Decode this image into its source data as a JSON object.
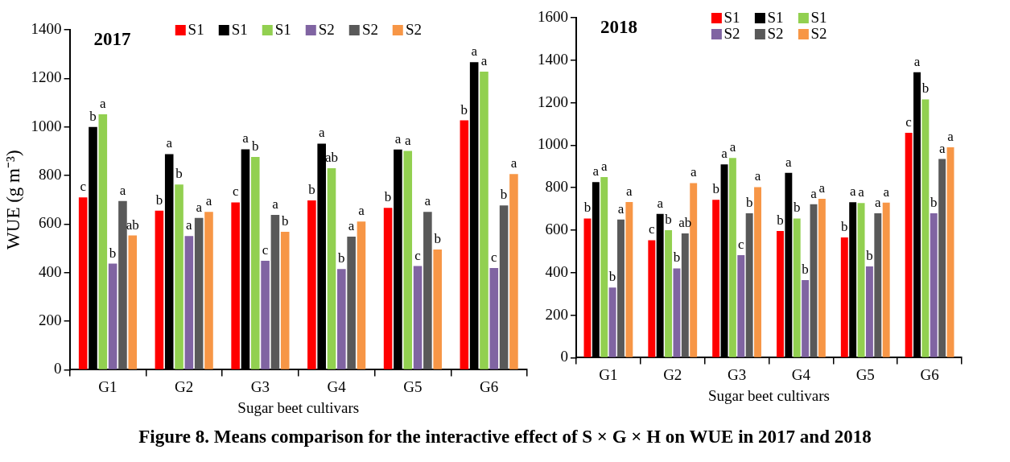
{
  "chart_data": [
    {
      "type": "bar",
      "title": "2017",
      "xlabel": "Sugar beet cultivars",
      "ylabel": "WUE (g m⁻³)",
      "categories": [
        "G1",
        "G2",
        "G3",
        "G4",
        "G5",
        "G6"
      ],
      "ylim": [
        0,
        1400
      ],
      "yticks": [
        0,
        200,
        400,
        600,
        800,
        1000,
        1200,
        1400
      ],
      "grid": false,
      "legend": "top",
      "series": [
        {
          "name": "S1",
          "color": "#ff0000",
          "values": [
            710,
            655,
            689,
            697,
            667,
            1027
          ],
          "value_labels": [
            "c",
            "b",
            "c",
            "b",
            "b",
            "b"
          ]
        },
        {
          "name": "S1",
          "color": "#000000",
          "values": [
            1000,
            888,
            908,
            931,
            907,
            1267
          ],
          "value_labels": [
            "b",
            "a",
            "a",
            "a",
            "a",
            "a"
          ]
        },
        {
          "name": "S1",
          "color": "#92d050",
          "values": [
            1052,
            763,
            876,
            830,
            901,
            1228
          ],
          "value_labels": [
            "a",
            "b",
            "b",
            "ab",
            "a",
            "a"
          ]
        },
        {
          "name": "S2",
          "color": "#8064a2",
          "values": [
            437,
            551,
            449,
            415,
            427,
            419
          ],
          "value_labels": [
            "b",
            "a",
            "c",
            "b",
            "c",
            "c"
          ]
        },
        {
          "name": "S2",
          "color": "#595959",
          "values": [
            695,
            625,
            638,
            548,
            650,
            677
          ],
          "value_labels": [
            "a",
            "a",
            "a",
            "a",
            "a",
            "b"
          ]
        },
        {
          "name": "S2",
          "color": "#f79646",
          "values": [
            553,
            650,
            568,
            610,
            495,
            806
          ],
          "value_labels": [
            "ab",
            "a",
            "b",
            "a",
            "b",
            "a"
          ]
        }
      ],
      "annotations": [
        "Figure 8. Means comparison for the interactive effect of S × G × H on WUE  in 2017 and 2018"
      ]
    },
    {
      "type": "bar",
      "title": "2018",
      "xlabel": "Sugar beet cultivars",
      "categories": [
        "G1",
        "G2",
        "G3",
        "G4",
        "G5",
        "G6"
      ],
      "ylim": [
        0,
        1600
      ],
      "yticks": [
        0,
        200,
        400,
        600,
        800,
        1000,
        1200,
        1400,
        1600
      ],
      "grid": false,
      "legend": "top",
      "series": [
        {
          "name": "S1",
          "color": "#ff0000",
          "values": [
            655,
            553,
            743,
            596,
            566,
            1058
          ],
          "value_labels": [
            "b",
            "c",
            "b",
            "b",
            "b",
            "c"
          ]
        },
        {
          "name": "S1",
          "color": "#000000",
          "values": [
            826,
            677,
            910,
            870,
            732,
            1343
          ],
          "value_labels": [
            "a",
            "a",
            "a",
            "a",
            "a",
            "a"
          ]
        },
        {
          "name": "S1",
          "color": "#92d050",
          "values": [
            850,
            600,
            940,
            655,
            728,
            1216
          ],
          "value_labels": [
            "a",
            "b",
            "a",
            "b",
            "a",
            "b"
          ]
        },
        {
          "name": "S2",
          "color": "#8064a2",
          "values": [
            330,
            420,
            483,
            365,
            430,
            680
          ],
          "value_labels": [
            "b",
            "b",
            "c",
            "b",
            "b",
            "b"
          ]
        },
        {
          "name": "S2",
          "color": "#595959",
          "values": [
            650,
            585,
            680,
            722,
            680,
            935
          ],
          "value_labels": [
            "a",
            "ab",
            "b",
            "a",
            "a",
            "a"
          ]
        },
        {
          "name": "S2",
          "color": "#f79646",
          "values": [
            733,
            822,
            803,
            748,
            730,
            990
          ],
          "value_labels": [
            "a",
            "a",
            "a",
            "a",
            "a",
            "a"
          ]
        }
      ]
    }
  ]
}
